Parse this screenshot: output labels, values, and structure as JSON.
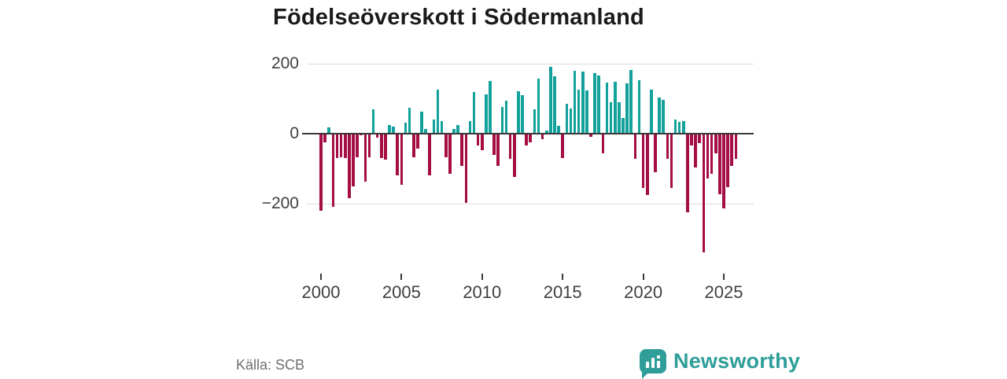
{
  "title": "Födelseöverskott i Södermanland",
  "source": "Källa: SCB",
  "brand": {
    "name": "Newsworthy",
    "color": "#2f9e99",
    "icon": "bar-chart-bubble-icon"
  },
  "chart_data": {
    "type": "bar",
    "title": "Födelseöverskott i Södermanland",
    "xlabel": "",
    "ylabel": "",
    "frequency": "quarterly",
    "start_period": "2000-Q1",
    "end_period": "2025-Q4",
    "categories": [
      "2000Q1",
      "2000Q2",
      "2000Q3",
      "2000Q4",
      "2001Q1",
      "2001Q2",
      "2001Q3",
      "2001Q4",
      "2002Q1",
      "2002Q2",
      "2002Q3",
      "2002Q4",
      "2003Q1",
      "2003Q2",
      "2003Q3",
      "2003Q4",
      "2004Q1",
      "2004Q2",
      "2004Q3",
      "2004Q4",
      "2005Q1",
      "2005Q2",
      "2005Q3",
      "2005Q4",
      "2006Q1",
      "2006Q2",
      "2006Q3",
      "2006Q4",
      "2007Q1",
      "2007Q2",
      "2007Q3",
      "2007Q4",
      "2008Q1",
      "2008Q2",
      "2008Q3",
      "2008Q4",
      "2009Q1",
      "2009Q2",
      "2009Q3",
      "2009Q4",
      "2010Q1",
      "2010Q2",
      "2010Q3",
      "2010Q4",
      "2011Q1",
      "2011Q2",
      "2011Q3",
      "2011Q4",
      "2012Q1",
      "2012Q2",
      "2012Q3",
      "2012Q4",
      "2013Q1",
      "2013Q2",
      "2013Q3",
      "2013Q4",
      "2014Q1",
      "2014Q2",
      "2014Q3",
      "2014Q4",
      "2015Q1",
      "2015Q2",
      "2015Q3",
      "2015Q4",
      "2016Q1",
      "2016Q2",
      "2016Q3",
      "2016Q4",
      "2017Q1",
      "2017Q2",
      "2017Q3",
      "2017Q4",
      "2018Q1",
      "2018Q2",
      "2018Q3",
      "2018Q4",
      "2019Q1",
      "2019Q2",
      "2019Q3",
      "2019Q4",
      "2020Q1",
      "2020Q2",
      "2020Q3",
      "2020Q4",
      "2021Q1",
      "2021Q2",
      "2021Q3",
      "2021Q4",
      "2022Q1",
      "2022Q2",
      "2022Q3",
      "2022Q4",
      "2023Q1",
      "2023Q2",
      "2023Q3",
      "2023Q4",
      "2024Q1",
      "2024Q2",
      "2024Q3",
      "2024Q4",
      "2025Q1",
      "2025Q2",
      "2025Q3",
      "2025Q4"
    ],
    "values": [
      -220,
      -25,
      18,
      -210,
      -70,
      -67,
      -70,
      -185,
      -150,
      -67,
      -5,
      -137,
      -67,
      70,
      -11,
      -70,
      -75,
      24,
      20,
      -120,
      -145,
      31,
      74,
      -67,
      -42,
      63,
      13,
      -119,
      41,
      125,
      37,
      -67,
      -115,
      13,
      24,
      -92,
      -198,
      35,
      120,
      -34,
      -47,
      112,
      150,
      -60,
      -93,
      77,
      94,
      -71,
      -124,
      122,
      109,
      -34,
      -25,
      70,
      158,
      -15,
      8,
      192,
      165,
      22,
      -70,
      86,
      71,
      180,
      125,
      178,
      124,
      -10,
      172,
      167,
      -56,
      145,
      90,
      148,
      90,
      45,
      144,
      182,
      -73,
      152,
      -154,
      -175,
      125,
      -109,
      103,
      97,
      -73,
      -154,
      40,
      34,
      36,
      -225,
      -34,
      -97,
      -26,
      -340,
      -127,
      -114,
      -56,
      -172,
      -213,
      -153,
      -92,
      -71
    ],
    "positive_color": "#12a19b",
    "negative_color": "#a50d45",
    "axis_color": "#3a3a3a",
    "grid_color": "#dcdcdc",
    "grid": true,
    "legend": "none",
    "yticks": [
      200,
      0,
      -200
    ],
    "ytick_labels": [
      "200",
      "0",
      "−200"
    ],
    "xticks": [
      2000,
      2005,
      2010,
      2015,
      2020,
      2025
    ],
    "xtick_labels": [
      "2000",
      "2005",
      "2010",
      "2015",
      "2020",
      "2025"
    ],
    "ylim": [
      -380,
      215
    ]
  }
}
